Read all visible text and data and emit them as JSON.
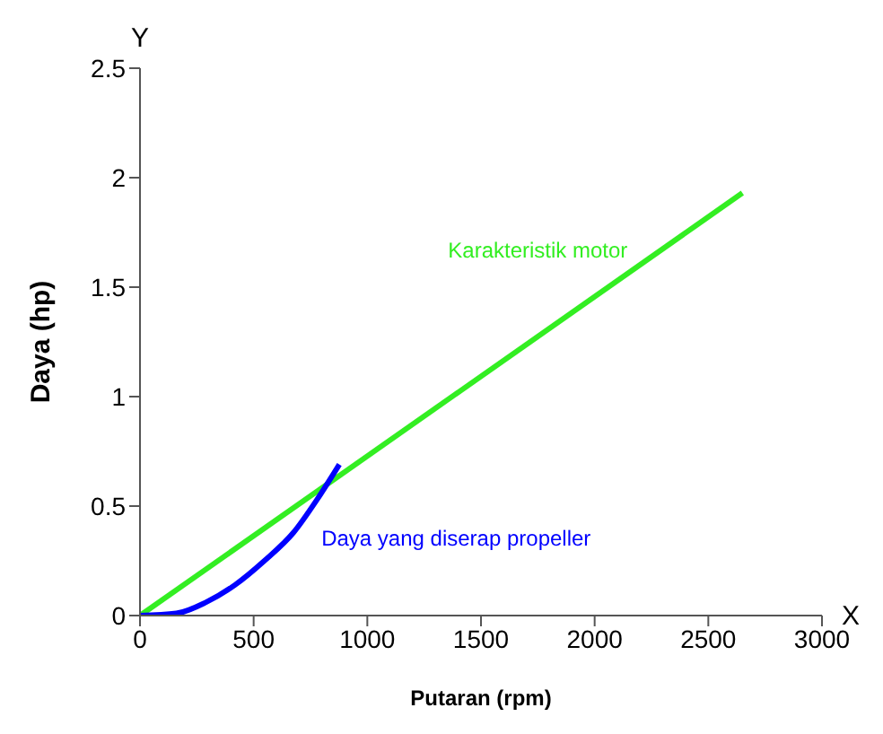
{
  "chart_data": {
    "type": "line",
    "xlabel": "Putaran (rpm)",
    "ylabel": "Daya (hp)",
    "xlim": [
      0,
      3000
    ],
    "xticks": [
      0,
      500,
      1000,
      1500,
      2000,
      2500,
      3000
    ],
    "ylim": [
      0,
      2.5
    ],
    "yticks": [
      0,
      0.5,
      1,
      1.5,
      2,
      2.5
    ],
    "grid": false,
    "legend": false,
    "marker": "none",
    "annotations": [
      "X",
      "Y"
    ],
    "series": [
      {
        "name": "Karakteristik motor",
        "color": "#33ee22",
        "x": [
          0,
          2650
        ],
        "values": [
          0,
          1.93
        ]
      },
      {
        "name": "Daya yang diserap propeller",
        "color": "#0000ff",
        "x": [
          0,
          160,
          289,
          418,
          547,
          676,
          779,
          877
        ],
        "values": [
          0,
          0.01,
          0.06,
          0.14,
          0.25,
          0.38,
          0.53,
          0.69
        ]
      }
    ]
  }
}
